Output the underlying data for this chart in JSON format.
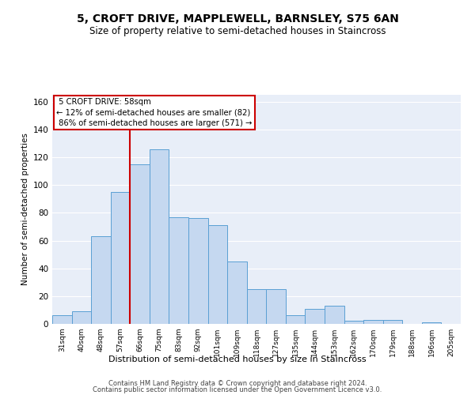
{
  "title": "5, CROFT DRIVE, MAPPLEWELL, BARNSLEY, S75 6AN",
  "subtitle": "Size of property relative to semi-detached houses in Staincross",
  "xlabel": "Distribution of semi-detached houses by size in Staincross",
  "ylabel": "Number of semi-detached properties",
  "categories": [
    "31sqm",
    "40sqm",
    "48sqm",
    "57sqm",
    "66sqm",
    "75sqm",
    "83sqm",
    "92sqm",
    "101sqm",
    "109sqm",
    "118sqm",
    "127sqm",
    "135sqm",
    "144sqm",
    "153sqm",
    "162sqm",
    "170sqm",
    "179sqm",
    "188sqm",
    "196sqm",
    "205sqm"
  ],
  "values": [
    6,
    9,
    63,
    95,
    115,
    126,
    77,
    76,
    71,
    45,
    25,
    25,
    6,
    11,
    13,
    2,
    3,
    3,
    0,
    1,
    0
  ],
  "bar_color": "#c5d8f0",
  "bar_edge_color": "#5a9fd4",
  "property_label": "5 CROFT DRIVE: 58sqm",
  "pct_smaller": 12,
  "n_smaller": 82,
  "pct_larger": 86,
  "n_larger": 571,
  "vline_index": 3.5,
  "vline_color": "#cc0000",
  "annotation_box_color": "#cc0000",
  "ylim": [
    0,
    165
  ],
  "yticks": [
    0,
    20,
    40,
    60,
    80,
    100,
    120,
    140,
    160
  ],
  "background_color": "#e8eef8",
  "grid_color": "#ffffff",
  "footer1": "Contains HM Land Registry data © Crown copyright and database right 2024.",
  "footer2": "Contains public sector information licensed under the Open Government Licence v3.0.",
  "title_fontsize": 10,
  "subtitle_fontsize": 8.5
}
